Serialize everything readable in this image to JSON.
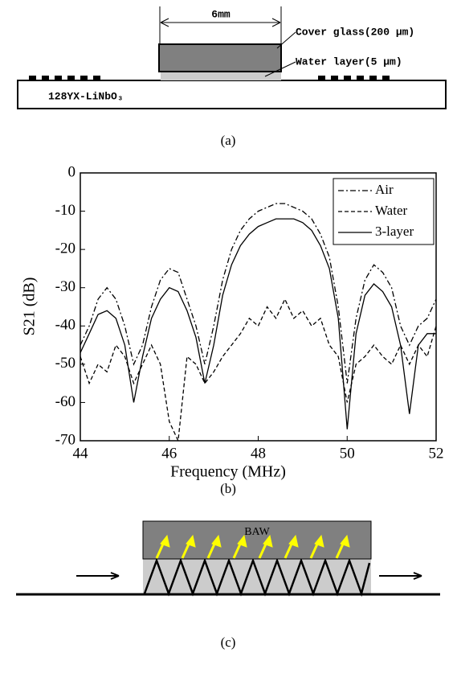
{
  "panel_a": {
    "dimension": "6mm",
    "cover_label": "Cover glass(200 μm)",
    "water_label": "Water layer(5 μm)",
    "substrate_label": "128YX-LiNbO₃",
    "caption": "(a)"
  },
  "chart_data": {
    "type": "line",
    "caption": "(b)",
    "x_label": "Frequency (MHz)",
    "y_label": "S21 (dB)",
    "x": [
      44,
      44.2,
      44.4,
      44.6,
      44.8,
      45,
      45.2,
      45.4,
      45.6,
      45.8,
      46,
      46.2,
      46.4,
      46.6,
      46.8,
      47,
      47.2,
      47.4,
      47.6,
      47.8,
      48,
      48.2,
      48.4,
      48.6,
      48.8,
      49,
      49.2,
      49.4,
      49.6,
      49.8,
      50,
      50.2,
      50.4,
      50.6,
      50.8,
      51,
      51.2,
      51.4,
      51.6,
      51.8,
      52
    ],
    "series": [
      {
        "name": "Air",
        "color": "#000000",
        "dash": "dashdot",
        "values": [
          -45,
          -40,
          -33,
          -30,
          -33,
          -40,
          -50,
          -45,
          -35,
          -28,
          -25,
          -26,
          -33,
          -40,
          -50,
          -40,
          -28,
          -20,
          -15,
          -12,
          -10,
          -9,
          -8,
          -8,
          -9,
          -10,
          -12,
          -16,
          -22,
          -35,
          -55,
          -38,
          -28,
          -24,
          -26,
          -30,
          -40,
          -45,
          -40,
          -38,
          -33
        ]
      },
      {
        "name": "Water",
        "color": "#000000",
        "dash": "dashed",
        "values": [
          -48,
          -55,
          -50,
          -52,
          -45,
          -48,
          -55,
          -50,
          -45,
          -50,
          -65,
          -70,
          -48,
          -50,
          -55,
          -52,
          -48,
          -45,
          -42,
          -38,
          -40,
          -35,
          -38,
          -33,
          -38,
          -36,
          -40,
          -38,
          -45,
          -48,
          -60,
          -50,
          -48,
          -45,
          -48,
          -50,
          -45,
          -50,
          -45,
          -48,
          -40
        ]
      },
      {
        "name": "3-layer",
        "color": "#000000",
        "dash": "solid",
        "values": [
          -47,
          -42,
          -37,
          -36,
          -38,
          -45,
          -60,
          -48,
          -38,
          -33,
          -30,
          -31,
          -36,
          -43,
          -55,
          -45,
          -32,
          -24,
          -19,
          -16,
          -14,
          -13,
          -12,
          -12,
          -12,
          -13,
          -15,
          -19,
          -25,
          -38,
          -67,
          -42,
          -32,
          -29,
          -31,
          -35,
          -45,
          -63,
          -45,
          -42,
          -42
        ]
      }
    ],
    "xlim": [
      44,
      52
    ],
    "xticks": [
      44,
      46,
      48,
      50,
      52
    ],
    "ylim": [
      -70,
      0
    ],
    "yticks": [
      -70,
      -60,
      -50,
      -40,
      -30,
      -20,
      -10,
      0
    ],
    "legend": "top-right"
  },
  "panel_c": {
    "block_label": "BAW",
    "caption": "(c)"
  }
}
